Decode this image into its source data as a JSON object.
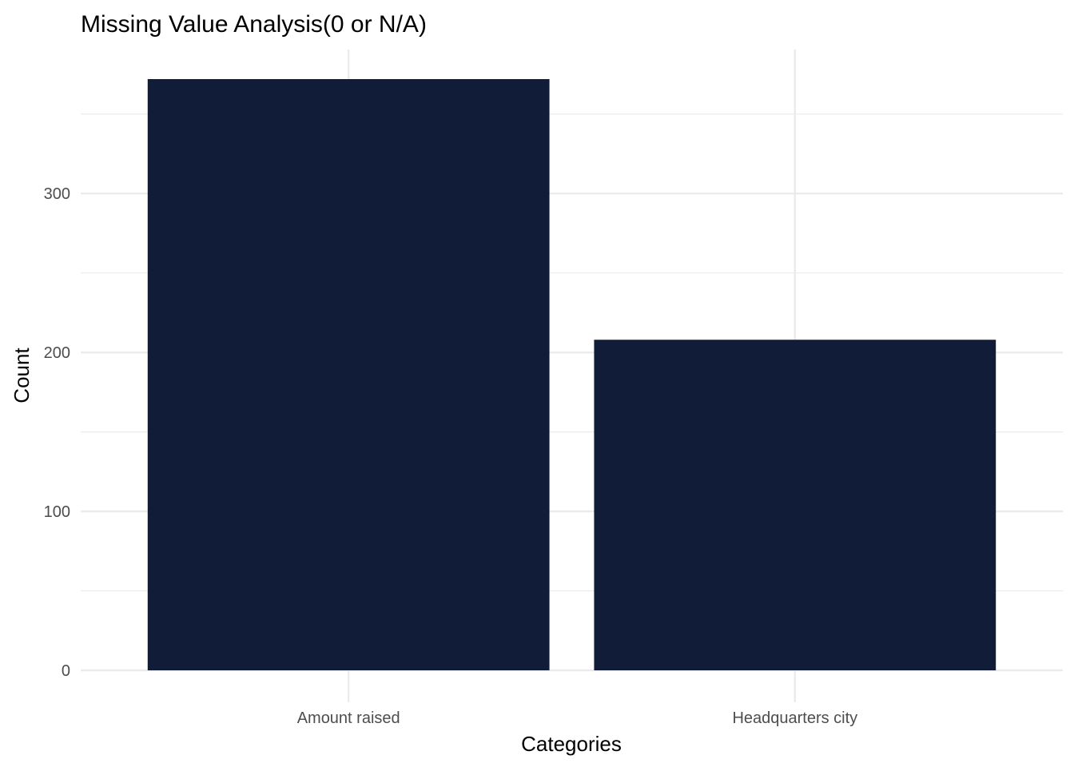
{
  "chart_data": {
    "type": "bar",
    "title": "Missing Value Analysis(0 or N/A)",
    "xlabel": "Categories",
    "ylabel": "Count",
    "categories": [
      "Amount raised",
      "Headquarters city"
    ],
    "values": [
      372,
      208
    ],
    "ylim": [
      0,
      390.6
    ],
    "yticks": [
      0,
      100,
      200,
      300
    ],
    "grid": true,
    "bar_color": "#111c38",
    "grid_color": "#ebebeb"
  }
}
